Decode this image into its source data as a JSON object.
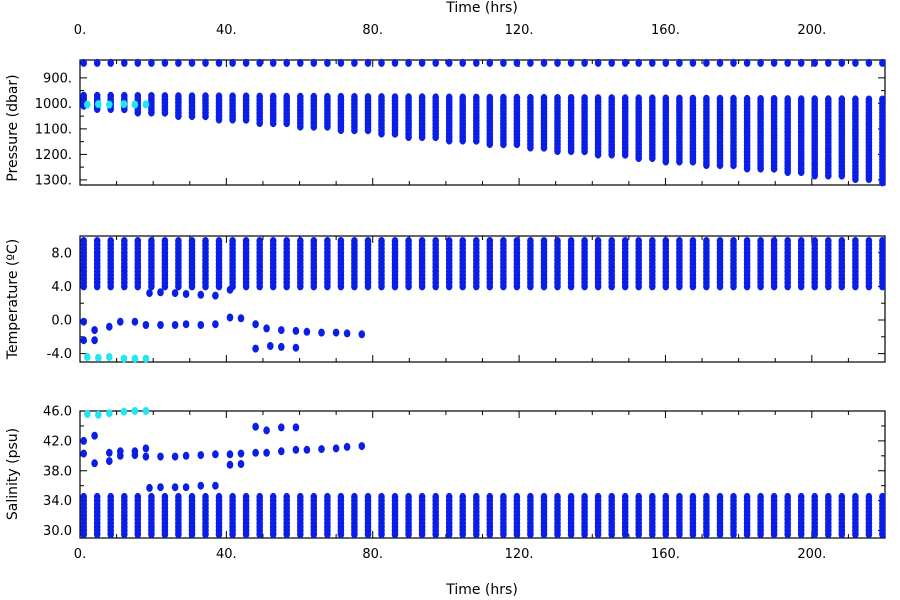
{
  "chart_data": [
    {
      "type": "scatter",
      "title": "",
      "xlabel_top": "Time (hrs)",
      "xlabel": "",
      "ylabel": "Pressure (dbar)",
      "xlim": [
        0,
        220
      ],
      "ylim": [
        1320,
        830
      ],
      "y_inverted": true,
      "x_ticks": [
        0,
        40,
        80,
        120,
        160,
        200
      ],
      "x_tick_labels": [
        "0.",
        "40.",
        "80.",
        "120.",
        "160.",
        "200."
      ],
      "y_ticks": [
        900,
        1000,
        1100,
        1200,
        1300
      ],
      "y_tick_labels": [
        "900.",
        "1000.",
        "1100.",
        "1200.",
        "1300."
      ],
      "grid": false,
      "colors": {
        "points": "#0a1ee6",
        "highlight": "#22e6f2"
      },
      "profile_times": {
        "start": 1,
        "step": 3.7,
        "end": 220
      },
      "series": [
        {
          "description": "surface samples",
          "y_top": 835,
          "y_bottom": 848
        },
        {
          "description": "profile band",
          "y_top_start": 970,
          "y_top_end": 985,
          "y_bottom_start": 1020,
          "y_bottom_end": 1310
        },
        {
          "description": "highlighted early samples",
          "color": "#22e6f2",
          "x": [
            2,
            5,
            8,
            12,
            15,
            18
          ],
          "y": [
            1005,
            1003,
            1005,
            1003,
            1005,
            1004
          ]
        }
      ]
    },
    {
      "type": "scatter",
      "title": "",
      "xlabel": "",
      "ylabel": "Temperature (ºC)",
      "xlim": [
        0,
        220
      ],
      "ylim": [
        -5,
        10
      ],
      "x_ticks": [
        0,
        40,
        80,
        120,
        160,
        200
      ],
      "y_ticks": [
        -4,
        0,
        4,
        8
      ],
      "y_tick_labels": [
        "-4.0",
        "0.0",
        "4.0",
        "8.0"
      ],
      "grid": false,
      "profile_band": {
        "y_top": 9.5,
        "y_bottom": 4.0
      },
      "series": [
        {
          "description": "early outliers",
          "x": [
            1,
            4,
            8,
            11,
            15,
            18,
            22,
            26,
            29,
            33,
            37,
            41,
            44,
            48,
            51,
            55,
            59,
            62,
            66,
            70,
            73,
            77
          ],
          "y": [
            -0.2,
            -1.2,
            -0.8,
            -0.2,
            -0.2,
            -0.6,
            -0.6,
            -0.6,
            -0.5,
            -0.6,
            -0.5,
            0.3,
            0.2,
            -0.5,
            -1.0,
            -1.2,
            -1.3,
            -1.4,
            -1.5,
            -1.5,
            -1.6,
            -1.7
          ]
        },
        {
          "description": "lower outliers",
          "x": [
            1,
            4,
            48,
            52,
            55,
            59
          ],
          "y": [
            -2.4,
            -2.4,
            -3.4,
            -3.1,
            -3.2,
            -3.3
          ]
        },
        {
          "description": "step samples",
          "x": [
            19,
            22,
            26,
            29,
            33,
            37,
            41
          ],
          "y": [
            3.2,
            3.3,
            3.2,
            3.1,
            3.0,
            2.9,
            3.6
          ]
        },
        {
          "description": "highlighted early samples",
          "color": "#22e6f2",
          "x": [
            2,
            5,
            8,
            12,
            15,
            18
          ],
          "y": [
            -4.4,
            -4.5,
            -4.4,
            -4.6,
            -4.6,
            -4.6
          ]
        }
      ]
    },
    {
      "type": "scatter",
      "title": "",
      "xlabel": "Time (hrs)",
      "ylabel": "Salinity (psu)",
      "xlim": [
        0,
        220
      ],
      "ylim": [
        29,
        46
      ],
      "x_ticks": [
        0,
        40,
        80,
        120,
        160,
        200
      ],
      "x_tick_labels": [
        "0.",
        "40.",
        "80.",
        "120.",
        "160.",
        "200."
      ],
      "y_ticks": [
        30,
        34,
        38,
        42,
        46
      ],
      "y_tick_labels": [
        "30.0",
        "34.0",
        "38.0",
        "42.0",
        "46.0"
      ],
      "grid": false,
      "profile_band": {
        "y_top": 34.5,
        "y_bottom": 29.5
      },
      "series": [
        {
          "description": "upper outliers",
          "x": [
            1,
            4,
            8,
            11,
            15,
            18,
            22,
            26,
            29,
            33,
            37,
            41,
            44,
            48,
            51,
            55,
            59,
            62,
            66,
            70,
            73,
            77
          ],
          "y": [
            40.3,
            39.0,
            39.3,
            40.0,
            40.1,
            39.9,
            39.9,
            39.9,
            40.0,
            40.1,
            40.2,
            40.2,
            40.3,
            40.4,
            40.4,
            40.6,
            40.8,
            40.8,
            40.9,
            41.0,
            41.2,
            41.3
          ]
        },
        {
          "description": "secondary outliers",
          "x": [
            1,
            4,
            8,
            11,
            15,
            18,
            41,
            44,
            48,
            51,
            55,
            59
          ],
          "y": [
            42.0,
            42.7,
            40.4,
            40.6,
            40.6,
            41.0,
            38.8,
            38.9,
            43.9,
            43.4,
            43.8,
            43.8
          ]
        },
        {
          "description": "step samples",
          "x": [
            19,
            22,
            26,
            29,
            33,
            37
          ],
          "y": [
            35.7,
            35.8,
            35.8,
            35.8,
            36.0,
            36.0
          ]
        },
        {
          "description": "highlighted early samples",
          "color": "#22e6f2",
          "x": [
            2,
            5,
            8,
            12,
            15,
            18
          ],
          "y": [
            45.6,
            45.5,
            45.7,
            45.9,
            46.0,
            46.0
          ]
        }
      ]
    }
  ]
}
